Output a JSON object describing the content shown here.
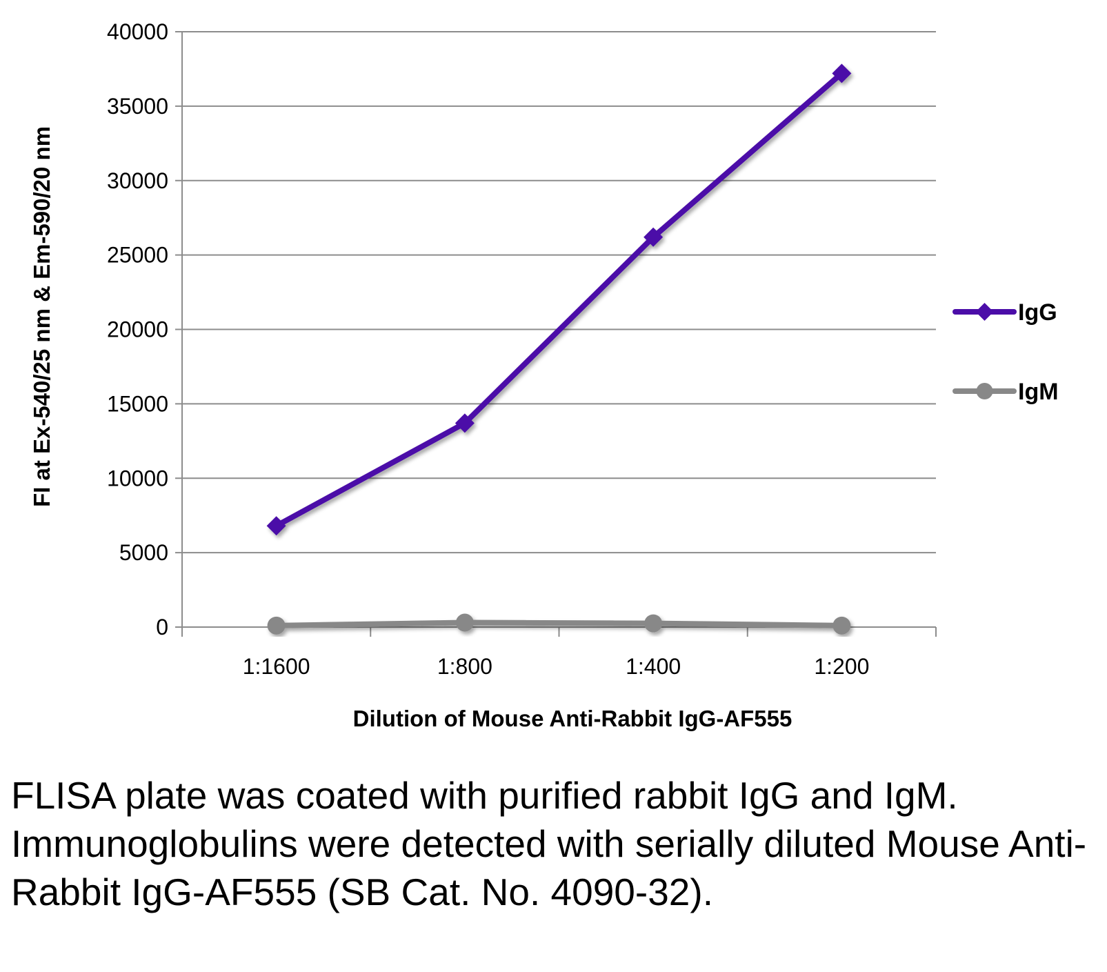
{
  "chart_data": {
    "type": "line",
    "categories": [
      "1:1600",
      "1:800",
      "1:400",
      "1:200"
    ],
    "series": [
      {
        "name": "IgG",
        "color": "#4B0DA8",
        "marker": "diamond",
        "values": [
          6800,
          13700,
          26200,
          37200
        ]
      },
      {
        "name": "IgM",
        "color": "#888888",
        "marker": "circle",
        "values": [
          100,
          300,
          250,
          100
        ]
      }
    ],
    "xlabel": "Dilution of Mouse Anti-Rabbit IgG-AF555",
    "ylabel": "FI at Ex-540/25 nm & Em-590/20 nm",
    "ylim": [
      0,
      40000
    ],
    "yticks": [
      "0",
      "5000",
      "10000",
      "15000",
      "20000",
      "25000",
      "30000",
      "35000",
      "40000"
    ],
    "grid": true,
    "legend_position": "right"
  },
  "caption": "FLISA plate was coated with purified rabbit IgG and IgM.  Immunoglobulins were detected with serially diluted Mouse Anti-Rabbit IgG-AF555 (SB Cat. No. 4090-32)."
}
